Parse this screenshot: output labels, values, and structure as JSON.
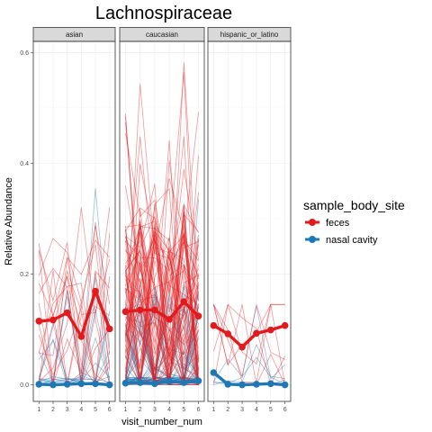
{
  "chart_data": {
    "type": "line",
    "title": "Lachnospiraceae",
    "xlabel": "visit_number_num",
    "ylabel": "Relative Abundance",
    "x_ticks": [
      "1",
      "2",
      "3",
      "4",
      "5",
      "6"
    ],
    "y_ticks": [
      "0.0",
      "0.2",
      "0.4",
      "0.6"
    ],
    "ylim": [
      -0.03,
      0.62
    ],
    "xlim": [
      0.6,
      6.4
    ],
    "grid": true,
    "legend": {
      "title": "sample_body_site",
      "position": "right",
      "entries": [
        "feces",
        "nasal cavity"
      ]
    },
    "colors": {
      "feces": "#e31a1c",
      "nasal cavity": "#1f78b4"
    },
    "facets": [
      {
        "label": "asian",
        "mean_series": [
          {
            "name": "feces",
            "x": [
              1,
              2,
              3,
              4,
              5,
              6
            ],
            "values": [
              0.115,
              0.117,
              0.13,
              0.087,
              0.169,
              0.101
            ]
          },
          {
            "name": "nasal cavity",
            "x": [
              1,
              2,
              3,
              4,
              5,
              6
            ],
            "values": [
              0.001,
              0.0,
              0.001,
              0.002,
              0.002,
              0.0
            ]
          }
        ],
        "individual_lines": {
          "count": 16,
          "max_values": {
            "feces": 0.32,
            "nasal cavity": 0.355
          }
        }
      },
      {
        "label": "caucasian",
        "mean_series": [
          {
            "name": "feces",
            "x": [
              1,
              2,
              3,
              4,
              5,
              6
            ],
            "values": [
              0.132,
              0.135,
              0.135,
              0.118,
              0.15,
              0.124
            ]
          },
          {
            "name": "nasal cavity",
            "x": [
              1,
              2,
              3,
              4,
              5,
              6
            ],
            "values": [
              0.003,
              0.004,
              0.002,
              0.006,
              0.004,
              0.007
            ]
          }
        ],
        "individual_lines": {
          "count": 70,
          "max_values": {
            "feces": 0.582,
            "nasal cavity": 0.335
          }
        }
      },
      {
        "label": "hispanic_or_latino",
        "mean_series": [
          {
            "name": "feces",
            "x": [
              1,
              2,
              3,
              4,
              5,
              6
            ],
            "values": [
              0.107,
              0.092,
              0.068,
              0.093,
              0.099,
              0.107
            ]
          },
          {
            "name": "nasal cavity",
            "x": [
              1,
              2,
              3,
              4,
              5,
              6
            ],
            "values": [
              0.022,
              0.001,
              0.0,
              0.001,
              0.002,
              0.0
            ]
          }
        ],
        "individual_lines": {
          "count": 6,
          "max_values": {
            "feces": 0.145,
            "nasal cavity": 0.142
          }
        }
      }
    ]
  }
}
